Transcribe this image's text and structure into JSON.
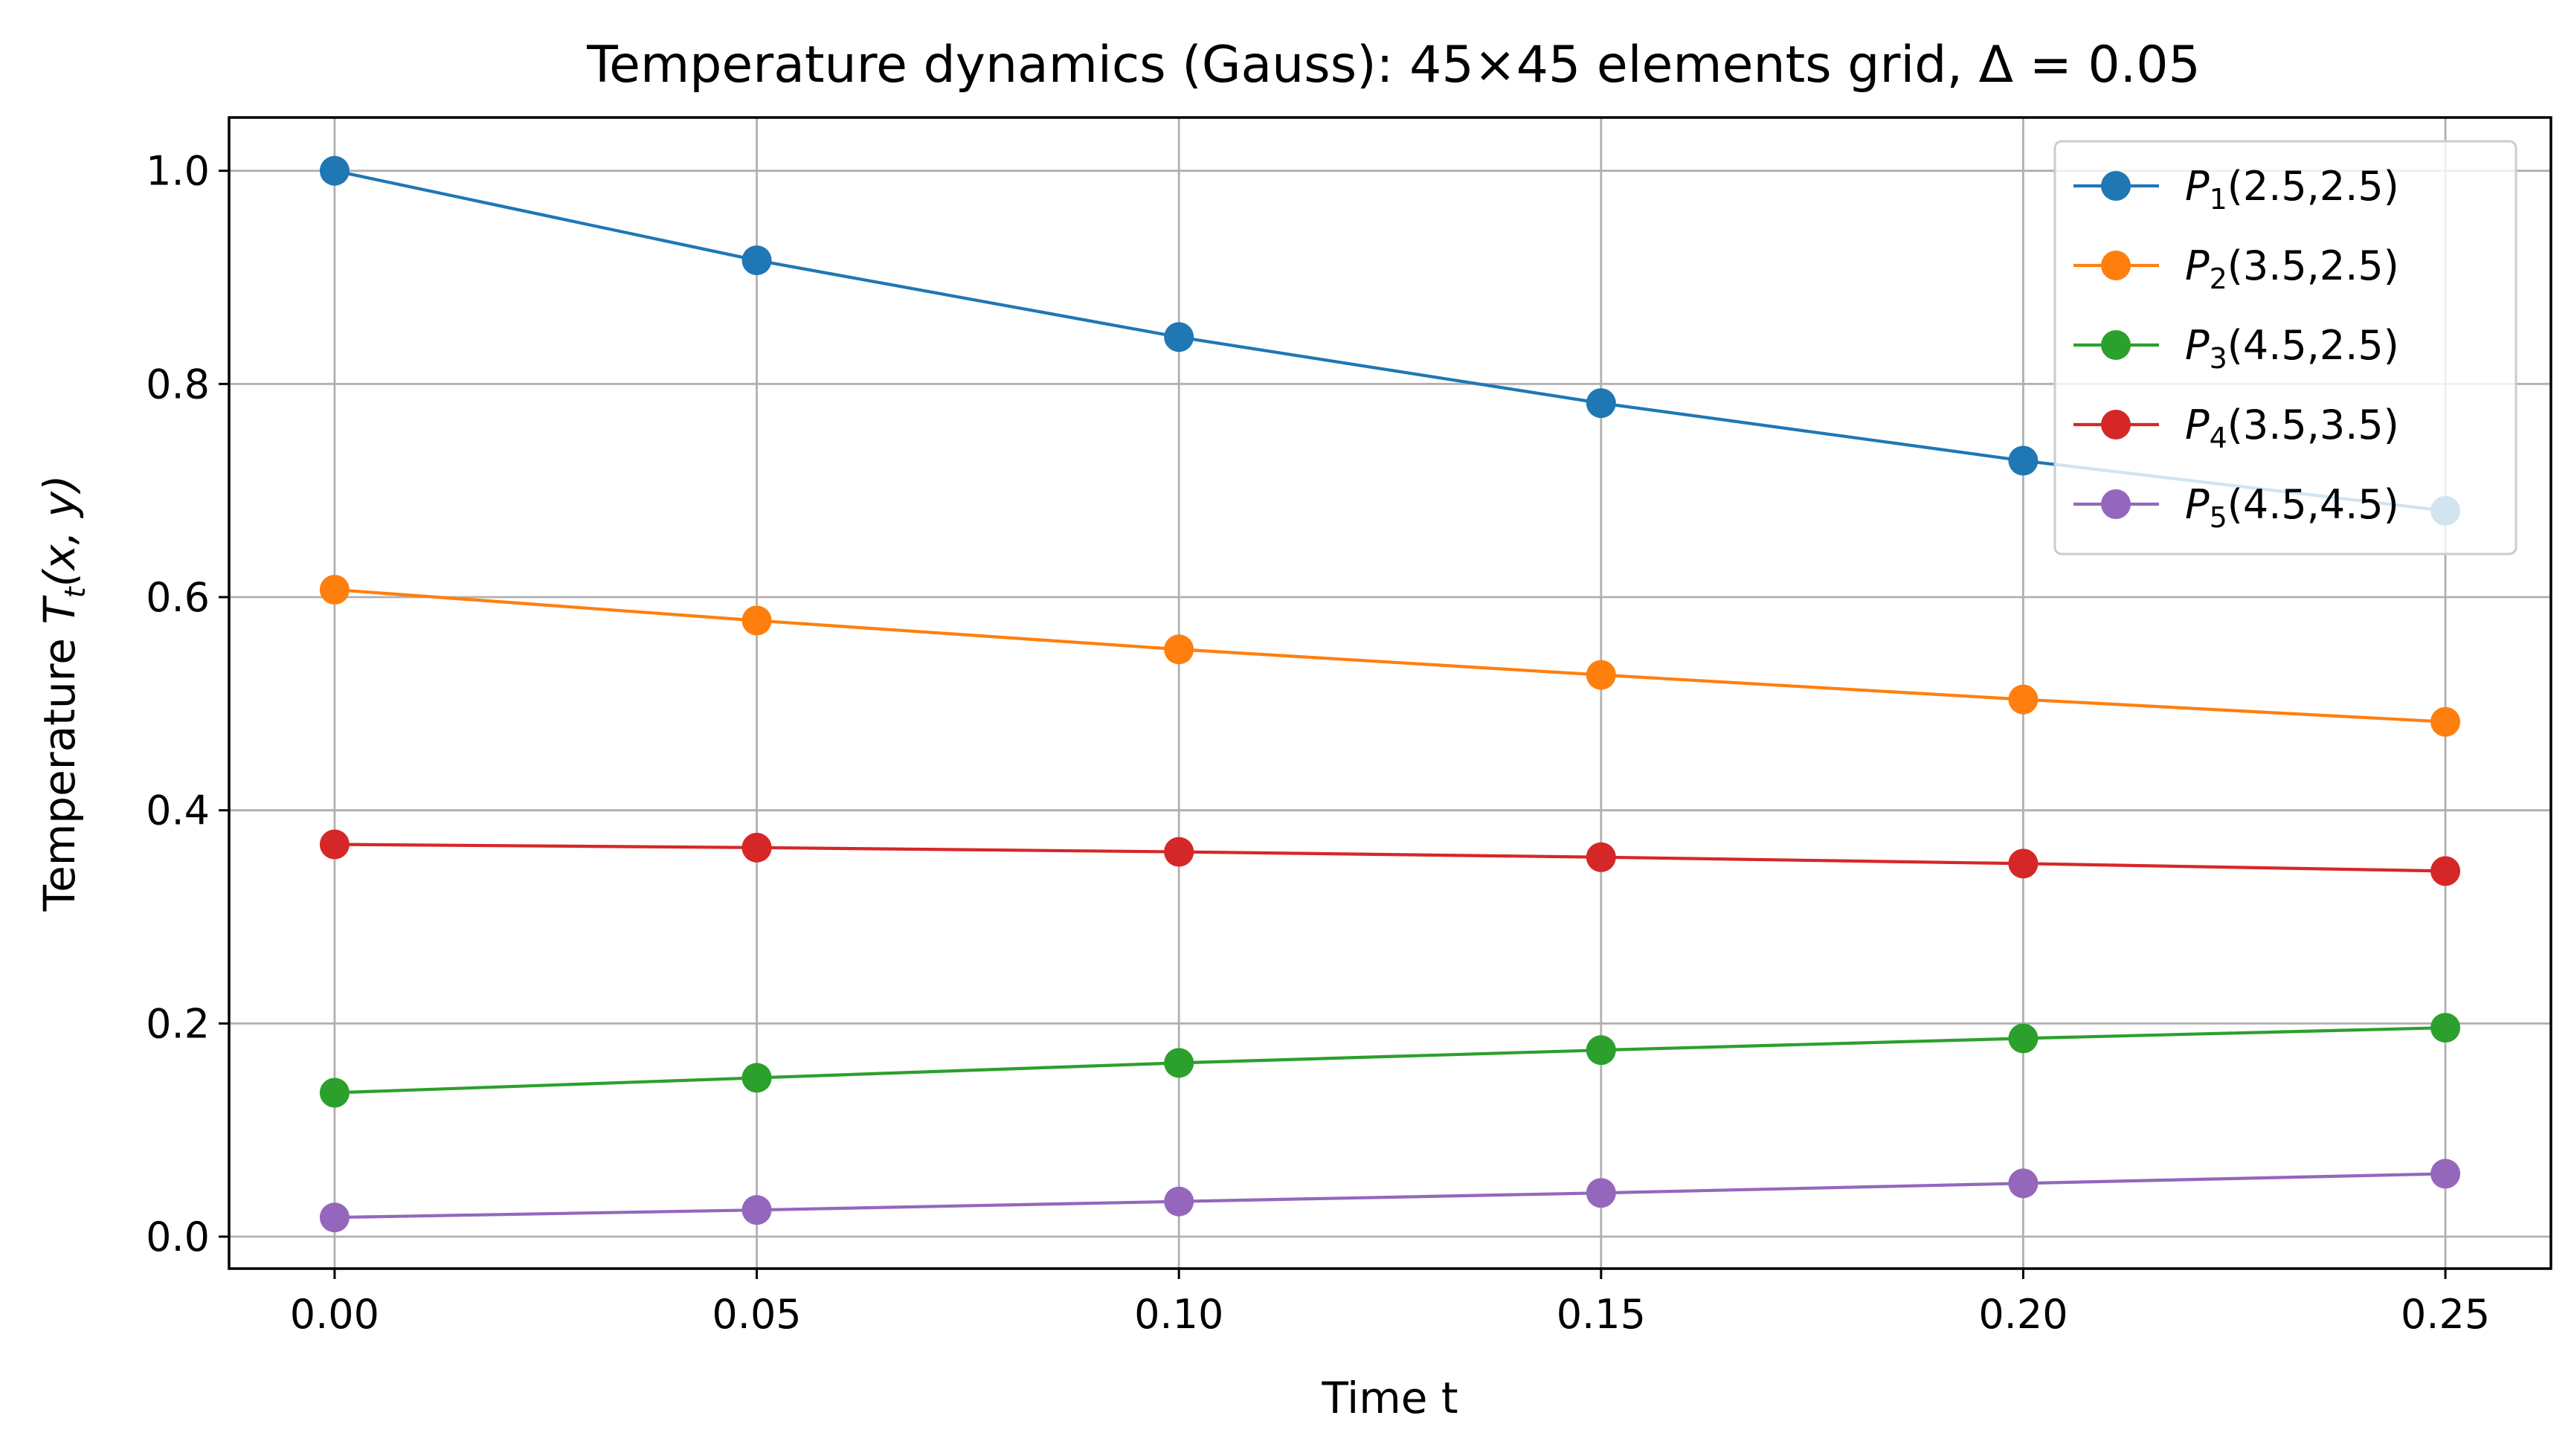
{
  "chart_data": {
    "type": "line",
    "title": "Temperature dynamics (Gauss): 45×45 elements grid, Δ = 0.05",
    "xlabel": "Time t",
    "ylabel_prefix": "Temperature ",
    "ylabel_math": "T",
    "ylabel_sub": "t",
    "ylabel_args": "(x, y)",
    "x": [
      0.0,
      0.05,
      0.1,
      0.15,
      0.2,
      0.25
    ],
    "x_ticks": [
      0.0,
      0.05,
      0.1,
      0.15,
      0.2,
      0.25
    ],
    "x_tick_labels": [
      "0.00",
      "0.05",
      "0.10",
      "0.15",
      "0.20",
      "0.25"
    ],
    "y_ticks": [
      0.0,
      0.2,
      0.4,
      0.6,
      0.8,
      1.0
    ],
    "y_tick_labels": [
      "0.0",
      "0.2",
      "0.4",
      "0.6",
      "0.8",
      "1.0"
    ],
    "xlim": [
      -0.0125,
      0.2625
    ],
    "ylim": [
      -0.03,
      1.05
    ],
    "grid": true,
    "legend_position": "top-right",
    "series": [
      {
        "name": "P1(2.5,2.5)",
        "symbol": "P",
        "sub": "1",
        "coords": "(2.5,2.5)",
        "color": "#1f77b4",
        "values": [
          1.0,
          0.916,
          0.844,
          0.782,
          0.728,
          0.681
        ]
      },
      {
        "name": "P2(3.5,2.5)",
        "symbol": "P",
        "sub": "2",
        "coords": "(3.5,2.5)",
        "color": "#ff7f0e",
        "values": [
          0.607,
          0.578,
          0.551,
          0.527,
          0.504,
          0.483
        ]
      },
      {
        "name": "P3(4.5,2.5)",
        "symbol": "P",
        "sub": "3",
        "coords": "(4.5,2.5)",
        "color": "#2ca02c",
        "values": [
          0.135,
          0.149,
          0.163,
          0.175,
          0.186,
          0.196
        ]
      },
      {
        "name": "P4(3.5,3.5)",
        "symbol": "P",
        "sub": "4",
        "coords": "(3.5,3.5)",
        "color": "#d62728",
        "values": [
          0.368,
          0.365,
          0.361,
          0.356,
          0.35,
          0.343
        ]
      },
      {
        "name": "P5(4.5,4.5)",
        "symbol": "P",
        "sub": "5",
        "coords": "(4.5,4.5)",
        "color": "#9467bd",
        "values": [
          0.018,
          0.025,
          0.033,
          0.041,
          0.05,
          0.059
        ]
      }
    ]
  }
}
